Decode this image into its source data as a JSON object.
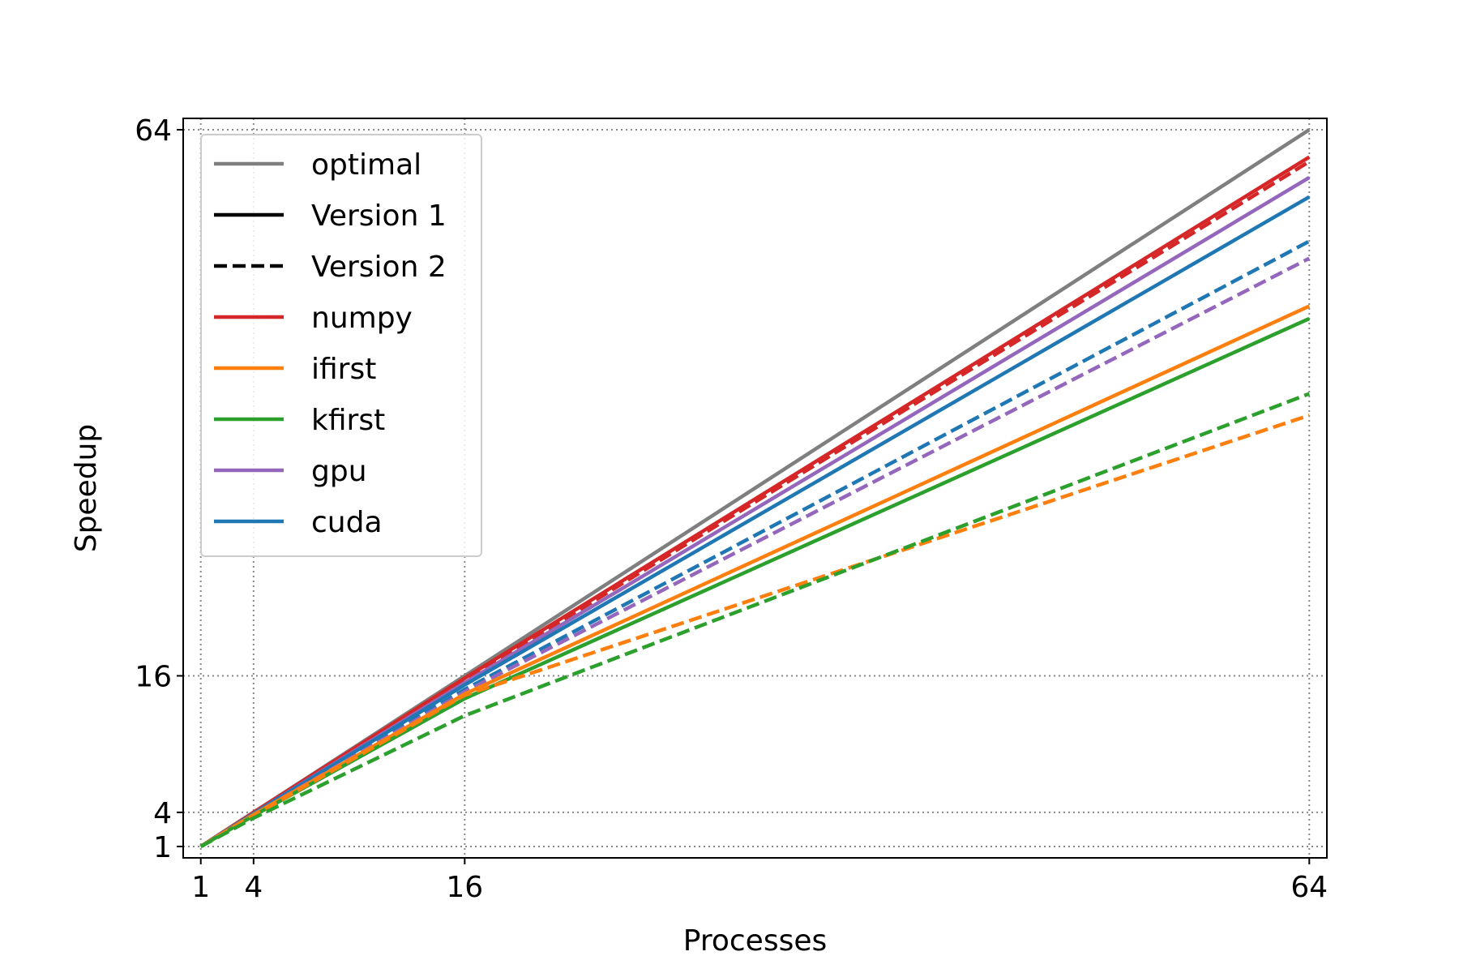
{
  "chart_data": {
    "type": "line",
    "title": "",
    "xlabel": "Processes",
    "ylabel": "Speedup",
    "xlim": [
      0,
      65
    ],
    "ylim": [
      0,
      65
    ],
    "xticks": [
      1,
      4,
      16,
      64
    ],
    "yticks": [
      1,
      4,
      16,
      64
    ],
    "grid": true,
    "legend_position": "upper-left",
    "x": [
      1,
      4,
      16,
      64
    ],
    "legend": [
      {
        "label": "optimal",
        "color": "#7f7f7f",
        "style": "solid"
      },
      {
        "label": "Version 1",
        "color": "#000000",
        "style": "solid"
      },
      {
        "label": "Version 2",
        "color": "#000000",
        "style": "dashed"
      },
      {
        "label": "numpy",
        "color": "#d62728",
        "style": "solid"
      },
      {
        "label": "ifirst",
        "color": "#ff7f0e",
        "style": "solid"
      },
      {
        "label": "kfirst",
        "color": "#2ca02c",
        "style": "solid"
      },
      {
        "label": "gpu",
        "color": "#9467bd",
        "style": "solid"
      },
      {
        "label": "cuda",
        "color": "#1f77b4",
        "style": "solid"
      }
    ],
    "series": [
      {
        "key": "optimal",
        "color": "#7f7f7f",
        "style": "solid",
        "values": [
          1,
          4,
          16,
          64
        ]
      },
      {
        "key": "numpy v1",
        "color": "#d62728",
        "style": "solid",
        "values": [
          1,
          4,
          15.8,
          61.6
        ]
      },
      {
        "key": "numpy v2",
        "color": "#d62728",
        "style": "dashed",
        "values": [
          1,
          4,
          15.6,
          61.2
        ]
      },
      {
        "key": "gpu v1",
        "color": "#9467bd",
        "style": "solid",
        "values": [
          1,
          3.9,
          15.4,
          59.8
        ]
      },
      {
        "key": "cuda v1",
        "color": "#1f77b4",
        "style": "solid",
        "values": [
          1,
          3.9,
          15.2,
          58.1
        ]
      },
      {
        "key": "cuda v2",
        "color": "#1f77b4",
        "style": "dashed",
        "values": [
          1,
          3.8,
          14.8,
          54.2
        ]
      },
      {
        "key": "gpu v2",
        "color": "#9467bd",
        "style": "dashed",
        "values": [
          1,
          3.8,
          14.6,
          52.7
        ]
      },
      {
        "key": "ifirst v1",
        "color": "#ff7f0e",
        "style": "solid",
        "values": [
          1,
          3.8,
          14.4,
          48.5
        ]
      },
      {
        "key": "kfirst v1",
        "color": "#2ca02c",
        "style": "solid",
        "values": [
          1,
          3.7,
          14.0,
          47.4
        ]
      },
      {
        "key": "ifirst v2",
        "color": "#ff7f0e",
        "style": "dashed",
        "values": [
          1,
          3.7,
          14.3,
          38.9
        ]
      },
      {
        "key": "kfirst v2",
        "color": "#2ca02c",
        "style": "dashed",
        "values": [
          1,
          3.5,
          12.5,
          40.8
        ]
      }
    ]
  }
}
